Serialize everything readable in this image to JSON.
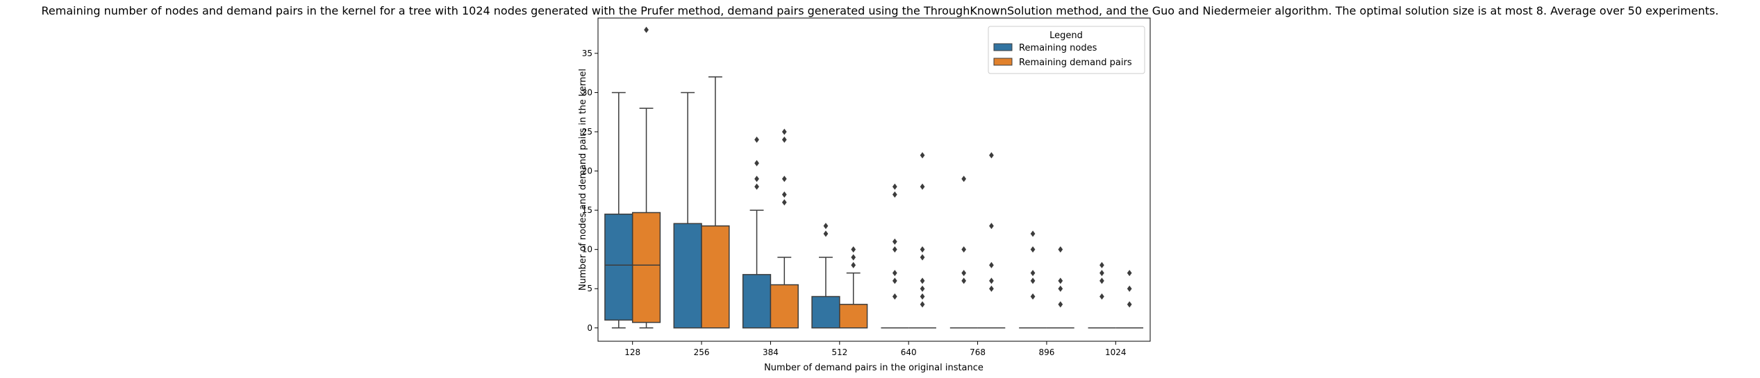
{
  "chart_data": {
    "type": "box",
    "title": "Remaining number of nodes and demand pairs in the kernel for a tree with 1024 nodes generated with the Prufer method, demand pairs generated using the ThroughKnownSolution method, and the Guo and Niedermeier algorithm. The optimal solution size is at most 8. Average over 50 experiments.",
    "xlabel": "Number of demand pairs in the original instance",
    "ylabel": "Number of nodes and demand pairs in the kernel",
    "categories": [
      "128",
      "256",
      "384",
      "512",
      "640",
      "768",
      "896",
      "1024"
    ],
    "ylim": [
      -1.7,
      39.5
    ],
    "yticks": [
      0,
      5,
      10,
      15,
      20,
      25,
      30,
      35
    ],
    "grid": false,
    "legend": {
      "title": "Legend",
      "position": "top-right"
    },
    "series": [
      {
        "name": "Remaining nodes",
        "color": "#3274a1",
        "boxes": [
          {
            "whislo": 0,
            "q1": 1,
            "med": 8,
            "q3": 14.5,
            "whishi": 30,
            "fliers": []
          },
          {
            "whislo": 0,
            "q1": 0,
            "med": 0,
            "q3": 13.3,
            "whishi": 30,
            "fliers": []
          },
          {
            "whislo": 0,
            "q1": 0,
            "med": 0,
            "q3": 6.8,
            "whishi": 15,
            "fliers": [
              18,
              19,
              21,
              24
            ]
          },
          {
            "whislo": 0,
            "q1": 0,
            "med": 0,
            "q3": 4,
            "whishi": 9,
            "fliers": [
              12,
              13
            ]
          },
          {
            "whislo": 0,
            "q1": 0,
            "med": 0,
            "q3": 0,
            "whishi": 0,
            "fliers": [
              4,
              6,
              7,
              10,
              11,
              17,
              18
            ]
          },
          {
            "whislo": 0,
            "q1": 0,
            "med": 0,
            "q3": 0,
            "whishi": 0,
            "fliers": [
              6,
              7,
              10,
              19
            ]
          },
          {
            "whislo": 0,
            "q1": 0,
            "med": 0,
            "q3": 0,
            "whishi": 0,
            "fliers": [
              4,
              6,
              7,
              10,
              12
            ]
          },
          {
            "whislo": 0,
            "q1": 0,
            "med": 0,
            "q3": 0,
            "whishi": 0,
            "fliers": [
              4,
              6,
              7,
              8
            ]
          }
        ]
      },
      {
        "name": "Remaining demand pairs",
        "color": "#e1812c",
        "boxes": [
          {
            "whislo": 0,
            "q1": 0.7,
            "med": 8,
            "q3": 14.7,
            "whishi": 28,
            "fliers": [
              38
            ]
          },
          {
            "whislo": 0,
            "q1": 0,
            "med": 0,
            "q3": 13,
            "whishi": 32,
            "fliers": []
          },
          {
            "whislo": 0,
            "q1": 0,
            "med": 0,
            "q3": 5.5,
            "whishi": 9,
            "fliers": [
              16,
              17,
              19,
              24,
              25
            ]
          },
          {
            "whislo": 0,
            "q1": 0,
            "med": 0,
            "q3": 3,
            "whishi": 7,
            "fliers": [
              8,
              9,
              10
            ]
          },
          {
            "whislo": 0,
            "q1": 0,
            "med": 0,
            "q3": 0,
            "whishi": 0,
            "fliers": [
              3,
              4,
              5,
              6,
              9,
              10,
              18,
              22
            ]
          },
          {
            "whislo": 0,
            "q1": 0,
            "med": 0,
            "q3": 0,
            "whishi": 0,
            "fliers": [
              5,
              6,
              8,
              13,
              22
            ]
          },
          {
            "whislo": 0,
            "q1": 0,
            "med": 0,
            "q3": 0,
            "whishi": 0,
            "fliers": [
              3,
              5,
              6,
              10
            ]
          },
          {
            "whislo": 0,
            "q1": 0,
            "med": 0,
            "q3": 0,
            "whishi": 0,
            "fliers": [
              3,
              5,
              7
            ]
          }
        ]
      }
    ]
  }
}
